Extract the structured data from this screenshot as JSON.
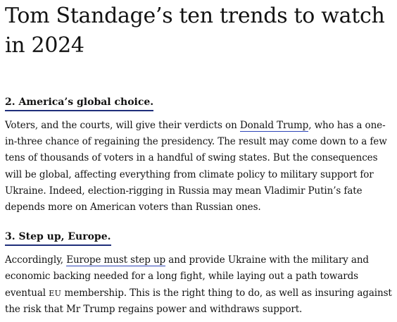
{
  "article": {
    "title": "Tom Standage’s ten trends to watch in 2024",
    "sections": [
      {
        "heading": "2. America’s global choice.",
        "paragraph": {
          "before_link": "Voters, and the courts, will give their verdicts on ",
          "link_text": "Donald Trump",
          "after_link": ", who has a one-in-three chance of regaining the presidency. The result may come down to a few tens of thousands of voters in a handful of swing states. But the consequences will be global, affecting everything from climate policy to military support for Ukraine. Indeed, election-rigging in Russia may mean Vladimir Putin’s fate depends more on American voters than Russian ones."
        }
      },
      {
        "heading": "3. Step up, Europe.",
        "paragraph": {
          "before_link": "Accordingly, ",
          "link_text": "Europe must step up",
          "middle": " and provide Ukraine with the military and economic backing needed for a long fight, while laying out a path towards eventual ",
          "smallcaps": "EU",
          "after_link": " membership. This is the right thing to do, as well as insuring against the risk that Mr Trump regains power and withdraws support."
        }
      }
    ],
    "colors": {
      "text": "#121212",
      "heading_underline": "#1f2e7a",
      "link_underline": "#2e45b8"
    }
  }
}
